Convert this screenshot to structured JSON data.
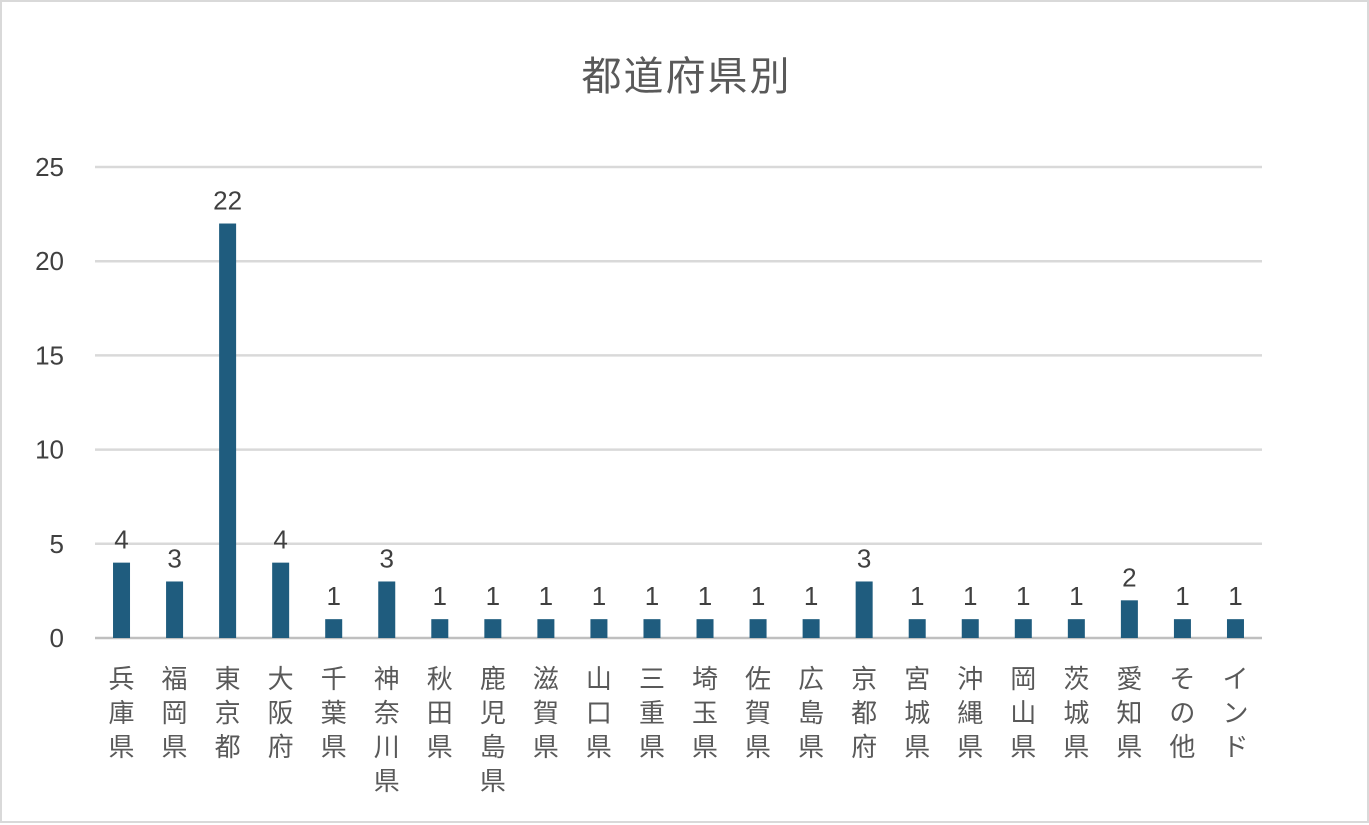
{
  "chart_data": {
    "type": "bar",
    "title": "都道府県別",
    "categories": [
      "兵庫県",
      "福岡県",
      "東京都",
      "大阪府",
      "千葉県",
      "神奈川県",
      "秋田県",
      "鹿児島県",
      "滋賀県",
      "山口県",
      "三重県",
      "埼玉県",
      "佐賀県",
      "広島県",
      "京都府",
      "宮城県",
      "沖縄県",
      "岡山県",
      "茨城県",
      "愛知県",
      "その他",
      "インド"
    ],
    "values": [
      4,
      3,
      22,
      4,
      1,
      3,
      1,
      1,
      1,
      1,
      1,
      1,
      1,
      1,
      3,
      1,
      1,
      1,
      1,
      2,
      1,
      1
    ],
    "ylim": [
      0,
      25
    ],
    "yticks": [
      0,
      5,
      10,
      15,
      20,
      25
    ],
    "xlabel": "",
    "ylabel": "",
    "grid": true,
    "data_labels": true,
    "legend": "none",
    "colors": {
      "bar": "#1f5c7e",
      "grid": "#d9d9d9",
      "axis": "#bfbfbf"
    }
  }
}
